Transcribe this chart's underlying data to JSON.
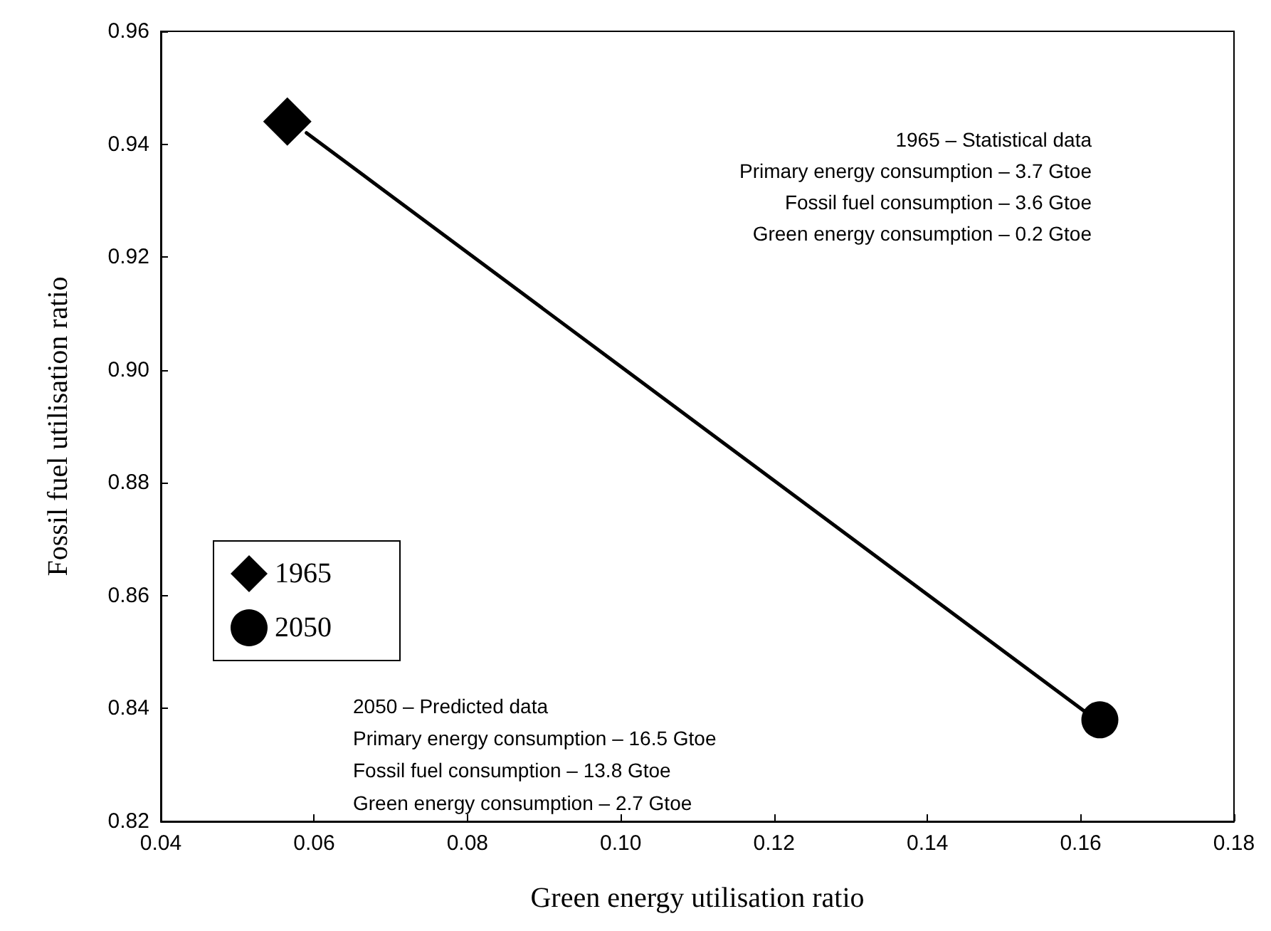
{
  "chart_data": {
    "type": "scatter",
    "xlabel": "Green energy utilisation ratio",
    "ylabel": "Fossil fuel utilisation ratio",
    "xlim": [
      0.04,
      0.18
    ],
    "xticks": [
      0.04,
      0.06,
      0.08,
      {
        "value": 0.1,
        "label": "0.10"
      },
      0.12,
      0.14,
      0.16,
      0.18
    ],
    "ylim": [
      0.82,
      0.96
    ],
    "yticks": [
      0.82,
      0.84,
      0.86,
      0.88,
      {
        "value": 0.9,
        "label": "0.90"
      },
      0.92,
      0.94,
      0.96
    ],
    "series": [
      {
        "type": "line",
        "color": "#000000",
        "marker": "none",
        "line_style": "solid",
        "x": [
          0.059,
          0.161
        ],
        "values": [
          0.942,
          0.839
        ]
      },
      {
        "name": "1965",
        "color": "#000000",
        "marker": "diamond",
        "x": [
          0.0565
        ],
        "values": [
          0.944
        ]
      },
      {
        "name": "2050",
        "color": "#000000",
        "marker": "circle",
        "x": [
          0.1625
        ],
        "values": [
          0.838
        ]
      }
    ],
    "legend": "left",
    "grid": false,
    "annotations": [
      "1965 – Statistical data",
      "Primary energy consumption – 3.7 Gtoe",
      "Fossil fuel consumption – 3.6 Gtoe",
      "Green energy consumption – 0.2 Gtoe",
      "2050 – Predicted data",
      "Primary energy consumption – 16.5 Gtoe",
      "Fossil fuel consumption – 13.8 Gtoe",
      "Green energy consumption – 2.7 Gtoe"
    ]
  }
}
